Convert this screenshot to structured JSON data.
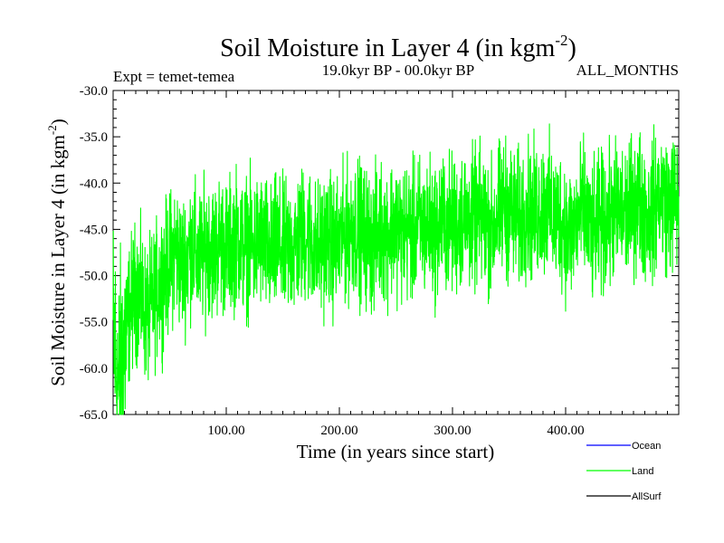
{
  "chart_data": {
    "type": "line",
    "title": "Soil Moisture in Layer 4 (in kgm",
    "title_superscript": "-2",
    "title_suffix": ")",
    "expt_label": "Expt = temet-temea",
    "period_label": "19.0kyr BP - 00.0kyr BP",
    "months_label": "ALL_MONTHS",
    "xlabel": "Time (in years since start)",
    "ylabel": "Soil Moisture in Layer 4 (in kgm",
    "ylabel_superscript": "-2",
    "ylabel_suffix": ")",
    "xlim": [
      0,
      500
    ],
    "ylim": [
      -65.0,
      -30.0
    ],
    "x_ticks": [
      100,
      200,
      300,
      400
    ],
    "x_tick_labels": [
      "100.00",
      "200.00",
      "300.00",
      "400.00"
    ],
    "y_ticks": [
      -65,
      -60,
      -55,
      -50,
      -45,
      -40,
      -35,
      -30
    ],
    "y_tick_labels": [
      "-65.0",
      "-60.0",
      "-55.0",
      "-50.0",
      "-45.0",
      "-40.0",
      "-35.0",
      "-30.0"
    ],
    "legend_position": "bottom-right-outside",
    "series": [
      {
        "name": "Ocean",
        "color": "#0000ff",
        "values": []
      },
      {
        "name": "Land",
        "color": "#00ff00",
        "x_start": 0,
        "x_step": 5,
        "values": [
          -56.0,
          -62.5,
          -57.5,
          -53.5,
          -51.5,
          -52.5,
          -54.5,
          -53.0,
          -51.0,
          -50.0,
          -48.5,
          -47.0,
          -49.0,
          -48.0,
          -46.5,
          -48.5,
          -47.5,
          -46.5,
          -47.5,
          -46.0,
          -47.5,
          -46.5,
          -45.5,
          -47.0,
          -46.5,
          -47.0,
          -46.0,
          -47.0,
          -48.0,
          -46.5,
          -47.5,
          -47.0,
          -47.0,
          -46.0,
          -45.5,
          -46.0,
          -47.5,
          -46.5,
          -46.0,
          -47.0,
          -46.5,
          -45.5,
          -45.0,
          -44.5,
          -45.5,
          -46.0,
          -46.5,
          -45.0,
          -45.5,
          -45.0,
          -44.5,
          -45.5,
          -45.0,
          -45.5,
          -44.5,
          -45.0,
          -44.5,
          -45.5,
          -44.0,
          -44.5,
          -44.5,
          -44.5,
          -43.5,
          -44.0,
          -44.0,
          -43.5,
          -44.5,
          -45.0,
          -43.5,
          -42.5,
          -43.0,
          -43.5,
          -44.5,
          -42.5,
          -43.5,
          -43.0,
          -42.5,
          -42.5,
          -44.0,
          -43.5,
          -45.0,
          -45.5,
          -44.0,
          -43.0,
          -44.5,
          -46.0,
          -44.0,
          -44.5,
          -43.5,
          -43.0,
          -43.5,
          -43.0,
          -42.5,
          -41.5,
          -43.0,
          -43.5,
          -42.0,
          -41.0,
          -42.5,
          -42.0
        ]
      },
      {
        "name": "AllSurf",
        "color": "#000000",
        "values": []
      }
    ]
  }
}
